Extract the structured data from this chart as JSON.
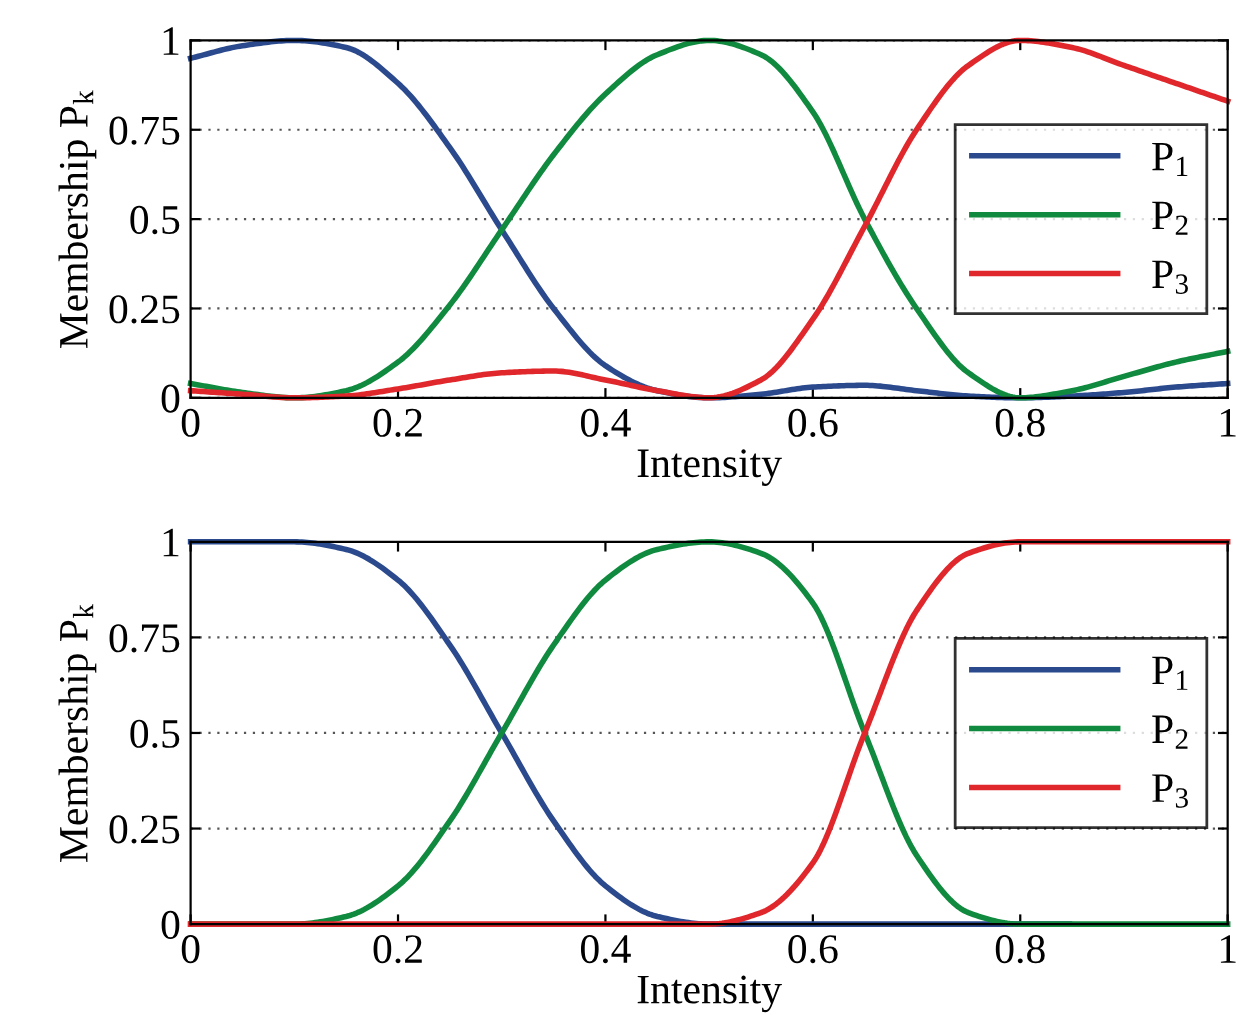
{
  "chart_data": [
    {
      "type": "line",
      "xlabel": "Intensity",
      "ylabel": "Membership P$_{k}$",
      "xlim": [
        0,
        1
      ],
      "ylim": [
        0,
        1
      ],
      "xticks": [
        0,
        0.2,
        0.4,
        0.6,
        0.8,
        1
      ],
      "yticks": [
        0,
        0.25,
        0.5,
        0.75,
        1
      ],
      "grid": "y",
      "legend": "right",
      "line_style": "solid",
      "x": [
        0,
        0.05,
        0.1,
        0.15,
        0.2,
        0.25,
        0.3,
        0.35,
        0.4,
        0.45,
        0.5,
        0.55,
        0.6,
        0.65,
        0.7,
        0.75,
        0.8,
        0.85,
        0.9,
        0.95,
        1
      ],
      "series": [
        {
          "name": "P$_{1}$",
          "color": "#2b4a8e",
          "values": [
            0.95,
            0.985,
            1.0,
            0.98,
            0.88,
            0.7,
            0.47,
            0.25,
            0.09,
            0.02,
            0.0,
            0.01,
            0.03,
            0.035,
            0.02,
            0.005,
            0.0,
            0.005,
            0.015,
            0.03,
            0.04
          ]
        },
        {
          "name": "P$_{2}$",
          "color": "#108a3e",
          "values": [
            0.04,
            0.015,
            0.0,
            0.02,
            0.1,
            0.26,
            0.47,
            0.68,
            0.85,
            0.96,
            1.0,
            0.96,
            0.8,
            0.5,
            0.25,
            0.07,
            0.0,
            0.02,
            0.06,
            0.1,
            0.13
          ]
        },
        {
          "name": "P$_{3}$",
          "color": "#e0282c",
          "values": [
            0.02,
            0.01,
            0.0,
            0.005,
            0.025,
            0.05,
            0.07,
            0.075,
            0.05,
            0.02,
            0.0,
            0.05,
            0.22,
            0.48,
            0.75,
            0.93,
            1.0,
            0.98,
            0.93,
            0.88,
            0.83
          ]
        }
      ]
    },
    {
      "type": "line",
      "xlabel": "Intensity",
      "ylabel": "Membership P$_{k}$",
      "xlim": [
        0,
        1
      ],
      "ylim": [
        0,
        1
      ],
      "xticks": [
        0,
        0.2,
        0.4,
        0.6,
        0.8,
        1
      ],
      "yticks": [
        0,
        0.25,
        0.5,
        0.75,
        1
      ],
      "grid": "y",
      "legend": "right",
      "line_style": "solid",
      "x": [
        0,
        0.05,
        0.1,
        0.15,
        0.2,
        0.25,
        0.3,
        0.35,
        0.4,
        0.45,
        0.5,
        0.55,
        0.6,
        0.65,
        0.7,
        0.75,
        0.8,
        0.85,
        0.9,
        0.95,
        1
      ],
      "series": [
        {
          "name": "P$_{1}$",
          "color": "#2b4a8e",
          "values": [
            1,
            1,
            1,
            0.98,
            0.9,
            0.73,
            0.5,
            0.27,
            0.1,
            0.02,
            0,
            0,
            0,
            0,
            0,
            0,
            0,
            0,
            null,
            null,
            null
          ]
        },
        {
          "name": "P$_{2}$",
          "color": "#108a3e",
          "values": [
            0,
            0,
            0,
            0.02,
            0.1,
            0.27,
            0.5,
            0.73,
            0.9,
            0.98,
            1,
            0.97,
            0.84,
            0.5,
            0.18,
            0.03,
            0,
            0,
            0,
            0,
            0
          ]
        },
        {
          "name": "P$_{3}$",
          "color": "#e0282c",
          "values": [
            0,
            0,
            0,
            0,
            0,
            0,
            0,
            0,
            0,
            0,
            0,
            0.03,
            0.16,
            0.5,
            0.82,
            0.97,
            1,
            1,
            1,
            1,
            1
          ]
        }
      ]
    }
  ]
}
